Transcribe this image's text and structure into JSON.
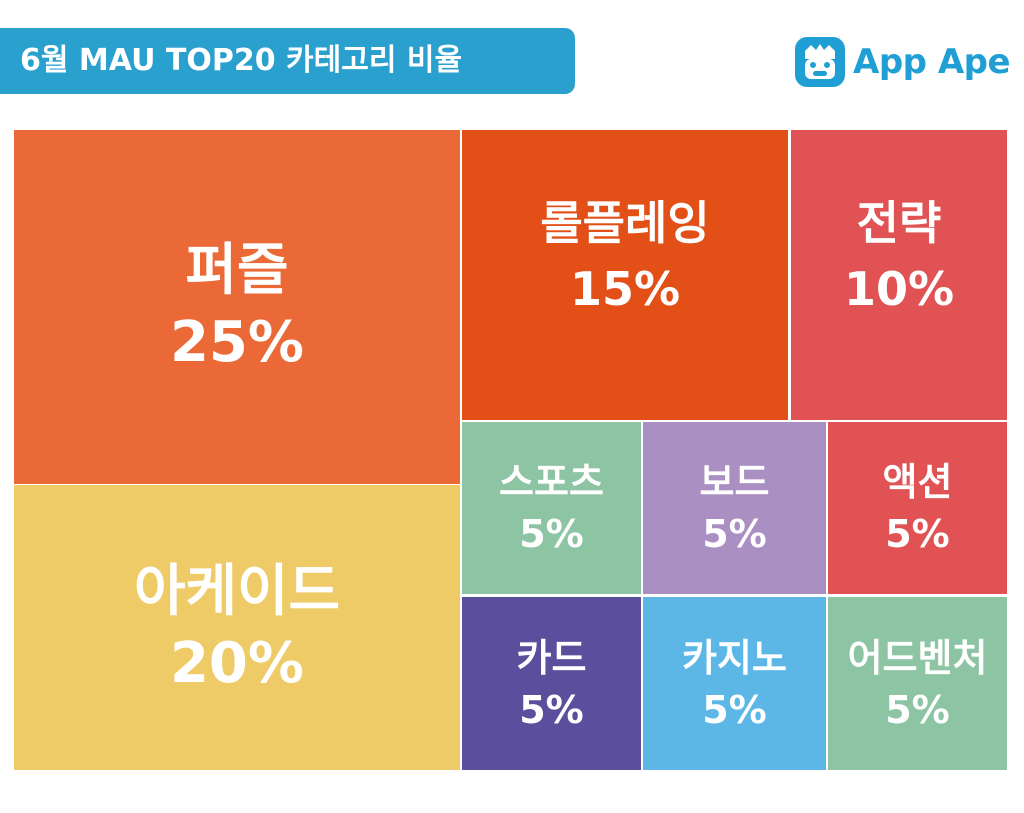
{
  "header": {
    "title": "6월 MAU TOP20 카테고리 비율",
    "logo_text": "App Ape",
    "logo_icon": "ape-face-icon"
  },
  "chart_data": {
    "type": "treemap",
    "title": "6월 MAU TOP20 카테고리 비율",
    "unit": "%",
    "categories": [
      "퍼즐",
      "아케이드",
      "롤플레잉",
      "전략",
      "스포츠",
      "보드",
      "액션",
      "카드",
      "카지노",
      "어드벤처"
    ],
    "values": [
      25,
      20,
      15,
      10,
      5,
      5,
      5,
      5,
      5,
      5
    ],
    "labels": [
      "25%",
      "20%",
      "15%",
      "10%",
      "5%",
      "5%",
      "5%",
      "5%",
      "5%",
      "5%"
    ],
    "colors": [
      "#ea6936",
      "#eecb66",
      "#e24f17",
      "#e05253",
      "#8dc5a4",
      "#a98fc2",
      "#e05253",
      "#5b4f9d",
      "#5cb7e6",
      "#8dc5a4"
    ]
  }
}
